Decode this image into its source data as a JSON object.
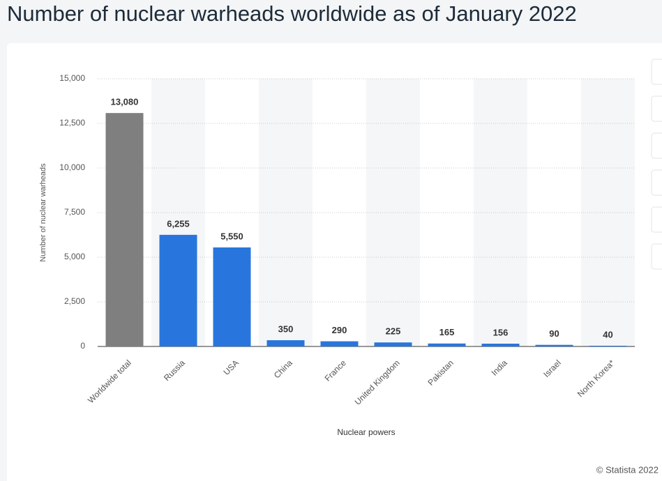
{
  "chart_data": {
    "type": "bar",
    "title": "Number of nuclear warheads worldwide as of January 2022",
    "categories": [
      "Worldwide total",
      "Russia",
      "USA",
      "China",
      "France",
      "United Kingdom",
      "Pakistan",
      "India",
      "Israel",
      "North Korea*"
    ],
    "values": [
      13080,
      6255,
      5550,
      350,
      290,
      225,
      165,
      156,
      90,
      40
    ],
    "value_labels": [
      "13,080",
      "6,255",
      "5,550",
      "350",
      "290",
      "225",
      "165",
      "156",
      "90",
      "40"
    ],
    "colors": [
      "#7f7f7f",
      "#2876dd",
      "#2876dd",
      "#2876dd",
      "#2876dd",
      "#2876dd",
      "#2876dd",
      "#2876dd",
      "#2876dd",
      "#2876dd"
    ],
    "ylim": [
      0,
      15000
    ],
    "yticks": [
      0,
      {
        "value": 2500,
        "label": "2,500"
      },
      {
        "value": 5000,
        "label": "5,000"
      },
      {
        "value": 7500,
        "label": "7,500"
      },
      {
        "value": 10000,
        "label": "10,000"
      },
      {
        "value": 12500,
        "label": "12,500"
      },
      {
        "value": 15000,
        "label": "15,000"
      }
    ],
    "grid": true,
    "y_label": "Number of nuclear warheads",
    "x_label": "Nuclear powers",
    "source": "© Statista 2022"
  }
}
